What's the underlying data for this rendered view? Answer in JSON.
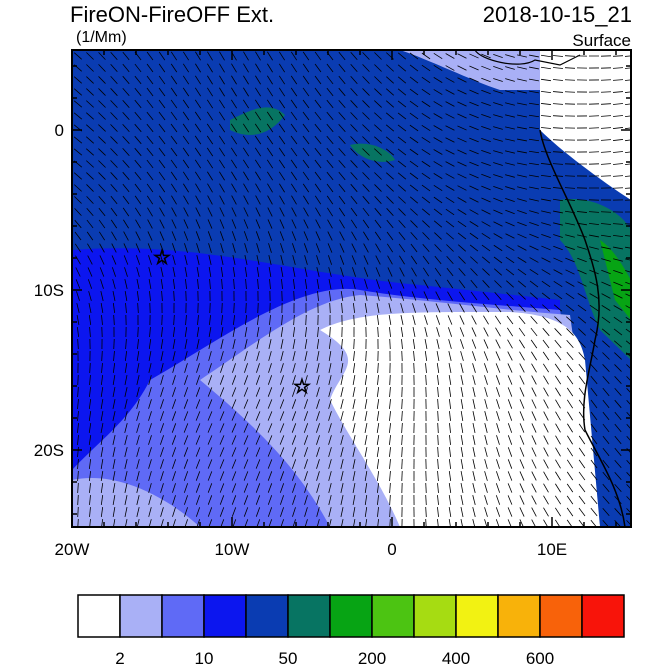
{
  "header": {
    "title": "FireON-FireOFF Ext.",
    "units": "(1/Mm)",
    "time": "2018-10-15_21",
    "level": "Surface"
  },
  "lat_labels": [
    "0",
    "10S",
    "20S"
  ],
  "lon_labels": [
    "20W",
    "10W",
    "0",
    "10E"
  ],
  "colorbar": {
    "colors": [
      "#ffffff",
      "#a9b0f6",
      "#5f6af6",
      "#0c16ef",
      "#0a3cb2",
      "#077462",
      "#07a414",
      "#4cc412",
      "#a6dc12",
      "#f2f212",
      "#f8b20a",
      "#f8620a",
      "#f8140a"
    ],
    "labels": [
      "2",
      "10",
      "50",
      "200",
      "400",
      "600"
    ]
  }
}
